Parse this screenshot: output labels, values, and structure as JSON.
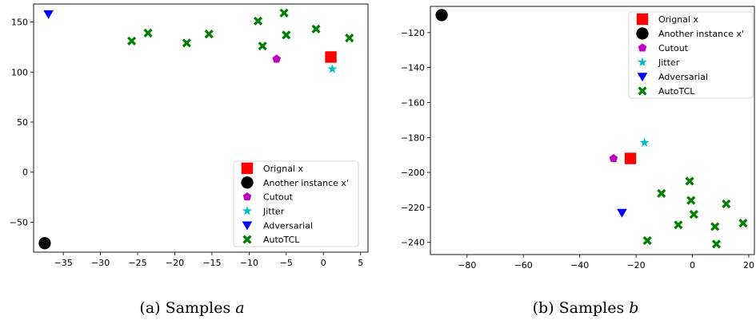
{
  "chart_data": [
    {
      "type": "scatter",
      "caption": "(a) Samples a",
      "caption_prefix": "(a) Samples ",
      "caption_var": "a",
      "xlim": [
        -39,
        6
      ],
      "ylim": [
        -80,
        168
      ],
      "xticks": [
        -35,
        -30,
        -25,
        -20,
        -15,
        -10,
        -5,
        0,
        5
      ],
      "yticks": [
        -50,
        0,
        50,
        100,
        150
      ],
      "grid": false,
      "legend_position": "lower-right",
      "series": [
        {
          "name": "Orignal x",
          "marker": "square",
          "color": "#ff0000",
          "points": [
            [
              1.0,
              115
            ]
          ]
        },
        {
          "name": "Another instance x'",
          "marker": "circle",
          "color": "#000000",
          "points": [
            [
              -37.5,
              -71
            ]
          ]
        },
        {
          "name": "Cutout",
          "marker": "pentagon",
          "color": "#bf00bf",
          "points": [
            [
              -6.3,
              113
            ]
          ]
        },
        {
          "name": "Jitter",
          "marker": "star",
          "color": "#00bfbf",
          "points": [
            [
              1.2,
              103
            ]
          ]
        },
        {
          "name": "Adversarial",
          "marker": "triangle-down",
          "color": "#0000ff",
          "points": [
            [
              -37.0,
              158
            ]
          ]
        },
        {
          "name": "AutoTCL",
          "marker": "x-filled",
          "color": "#008000",
          "points": [
            [
              -25.8,
              131
            ],
            [
              -23.6,
              139
            ],
            [
              -18.4,
              129
            ],
            [
              -15.4,
              138
            ],
            [
              -8.8,
              151
            ],
            [
              -8.2,
              126
            ],
            [
              -5.3,
              159
            ],
            [
              -5.0,
              137
            ],
            [
              -1.0,
              143
            ],
            [
              3.5,
              134
            ]
          ]
        }
      ]
    },
    {
      "type": "scatter",
      "caption": "(b) Samples b",
      "caption_prefix": "(b) Samples ",
      "caption_var": "b",
      "xlim": [
        -93,
        22
      ],
      "ylim": [
        -247,
        -105
      ],
      "xticks": [
        -80,
        -60,
        -40,
        -20,
        0,
        20
      ],
      "yticks": [
        -240,
        -220,
        -200,
        -180,
        -160,
        -140,
        -120
      ],
      "grid": false,
      "legend_position": "upper-right",
      "series": [
        {
          "name": "Orignal x",
          "marker": "square",
          "color": "#ff0000",
          "points": [
            [
              -22,
              -192
            ]
          ]
        },
        {
          "name": "Another instance x'",
          "marker": "circle",
          "color": "#000000",
          "points": [
            [
              -89,
              -110
            ]
          ]
        },
        {
          "name": "Cutout",
          "marker": "pentagon",
          "color": "#bf00bf",
          "points": [
            [
              -28,
              -192
            ]
          ]
        },
        {
          "name": "Jitter",
          "marker": "star",
          "color": "#00bfbf",
          "points": [
            [
              -17,
              -183
            ]
          ]
        },
        {
          "name": "Adversarial",
          "marker": "triangle-down",
          "color": "#0000ff",
          "points": [
            [
              -25,
              -223
            ]
          ]
        },
        {
          "name": "AutoTCL",
          "marker": "x-filled",
          "color": "#008000",
          "points": [
            [
              -16,
              -239
            ],
            [
              -11,
              -212
            ],
            [
              -5,
              -230
            ],
            [
              -1,
              -205
            ],
            [
              -0.5,
              -216
            ],
            [
              0.5,
              -224
            ],
            [
              8,
              -231
            ],
            [
              8.5,
              -241
            ],
            [
              12,
              -218
            ],
            [
              18,
              -229
            ]
          ]
        }
      ]
    }
  ]
}
